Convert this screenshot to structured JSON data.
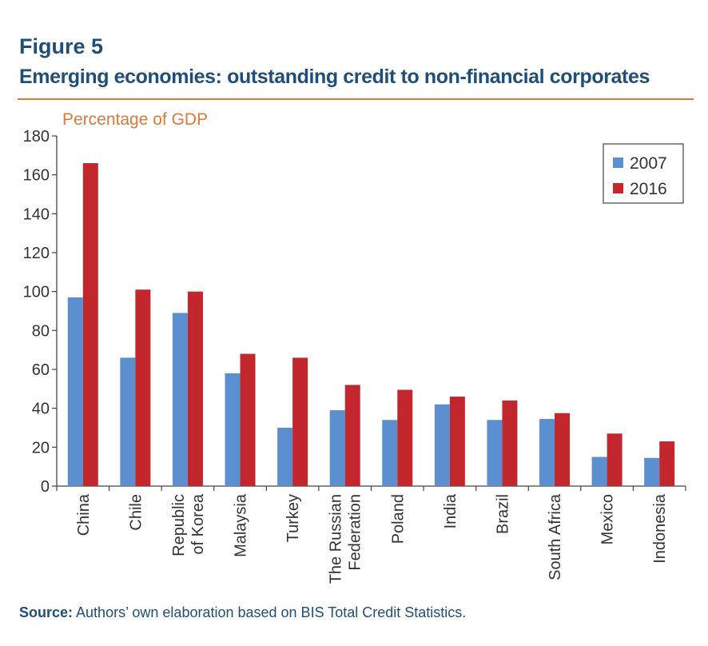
{
  "figure": {
    "label": "Figure 5",
    "title": "Emerging economies: outstanding credit to non-financial corporates"
  },
  "source": {
    "label": "Source:",
    "text": " Authors’ own elaboration based on BIS Total Credit Statistics."
  },
  "colors": {
    "accent": "#1f4e79",
    "rule": "#d9793a",
    "unit_label": "#d9793a",
    "series_2007": "#5b8fcf",
    "series_2016": "#c1272d"
  },
  "chart_data": {
    "type": "bar",
    "unit_label": "Percentage of GDP",
    "categories": [
      [
        "China"
      ],
      [
        "Chile"
      ],
      [
        "Republic",
        "of Korea"
      ],
      [
        "Malaysia"
      ],
      [
        "Turkey"
      ],
      [
        "The Russian",
        "Federation"
      ],
      [
        "Poland"
      ],
      [
        "India"
      ],
      [
        "Brazil"
      ],
      [
        "South Africa"
      ],
      [
        "Mexico"
      ],
      [
        "Indonesia"
      ]
    ],
    "series": [
      {
        "name": "2007",
        "color": "#5b8fcf",
        "values": [
          97,
          66,
          89,
          58,
          30,
          39,
          34,
          42,
          34,
          34.5,
          15,
          14.5
        ]
      },
      {
        "name": "2016",
        "color": "#c1272d",
        "values": [
          166,
          101,
          100,
          68,
          66,
          52,
          49.5,
          46,
          44,
          37.5,
          27,
          23
        ]
      }
    ],
    "ylim": [
      0,
      180
    ],
    "yticks": [
      0,
      20,
      40,
      60,
      80,
      100,
      120,
      140,
      160,
      180
    ],
    "grid": false,
    "legend_position": "top-right"
  }
}
